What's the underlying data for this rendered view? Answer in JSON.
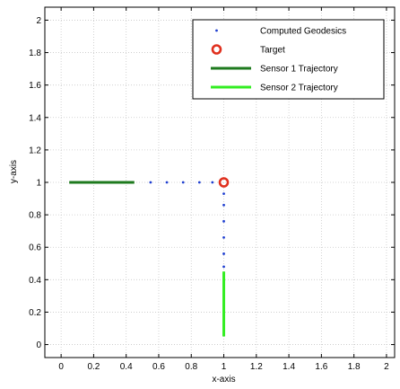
{
  "chart_data": {
    "type": "scatter",
    "title": "",
    "xlabel": "x-axis",
    "ylabel": "y-axis",
    "xlim": [
      -0.1,
      2.05
    ],
    "ylim": [
      -0.08,
      2.08
    ],
    "xticks": [
      0,
      0.2,
      0.4,
      0.6,
      0.8,
      1,
      1.2,
      1.4,
      1.6,
      1.8,
      2
    ],
    "xtick_labels": [
      "0",
      "0.2",
      "0.4",
      "0.6",
      "0.8",
      "1",
      "1.2",
      "1.4",
      "1.6",
      "1.8",
      "2"
    ],
    "yticks": [
      0,
      0.2,
      0.4,
      0.6,
      0.8,
      1,
      1.2,
      1.4,
      1.6,
      1.8,
      2
    ],
    "ytick_labels": [
      "0",
      "0.2",
      "0.4",
      "0.6",
      "0.8",
      "1",
      "1.2",
      "1.4",
      "1.6",
      "1.8",
      "2"
    ],
    "grid": true,
    "legend_position": "top-right",
    "series": [
      {
        "name": "Computed Geodesics",
        "kind": "points",
        "color": "#1f3fd0",
        "points": [
          [
            0.55,
            1
          ],
          [
            0.65,
            1
          ],
          [
            0.75,
            1
          ],
          [
            0.85,
            1
          ],
          [
            0.93,
            1
          ],
          [
            1,
            0.93
          ],
          [
            1,
            0.86
          ],
          [
            1,
            0.76
          ],
          [
            1,
            0.66
          ],
          [
            1,
            0.56
          ],
          [
            1,
            0.48
          ]
        ]
      },
      {
        "name": "Target",
        "kind": "marker",
        "color": "#e0301e",
        "points": [
          [
            1,
            1
          ]
        ]
      },
      {
        "name": "Sensor 1 Trajectory",
        "kind": "line",
        "color": "#1e7a1e",
        "points": [
          [
            0.05,
            1
          ],
          [
            0.45,
            1
          ]
        ]
      },
      {
        "name": "Sensor 2 Trajectory",
        "kind": "line",
        "color": "#33ee22",
        "points": [
          [
            1,
            0.05
          ],
          [
            1,
            0.45
          ]
        ]
      }
    ]
  }
}
